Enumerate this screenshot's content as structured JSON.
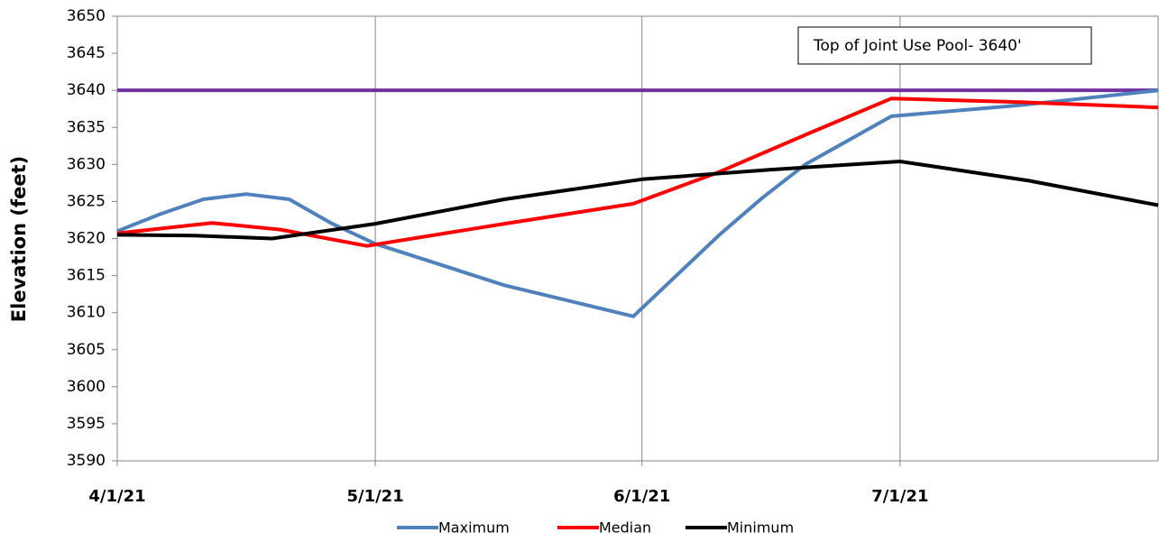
{
  "chart_data": {
    "type": "line",
    "y_label": "Elevation (feet)",
    "xlim": [
      "4/1/21",
      "7/31/21"
    ],
    "xticks": [
      "4/1/21",
      "5/1/21",
      "6/1/21",
      "7/1/21"
    ],
    "ylim": [
      3590,
      3650
    ],
    "yticks": [
      3590,
      3595,
      3600,
      3605,
      3610,
      3615,
      3620,
      3625,
      3630,
      3635,
      3640,
      3645,
      3650
    ],
    "grid": "x",
    "legend": "bottom",
    "reference_lines": [
      {
        "value": 3640,
        "color": "#7030a0"
      }
    ],
    "annotations": [
      "Top of Joint Use Pool- 3640'"
    ],
    "series": [
      {
        "name": "Maximum",
        "color": "#4f81bd",
        "x": [
          "4/1/21",
          "4/6/21",
          "4/11/21",
          "4/16/21",
          "4/21/21",
          "4/26/21",
          "5/1/21",
          "5/16/21",
          "5/31/21",
          "6/5/21",
          "6/10/21",
          "6/15/21",
          "6/20/21",
          "6/30/21",
          "7/15/21",
          "7/31/21"
        ],
        "values": [
          3621,
          3623.3,
          3625.3,
          3626,
          3625.3,
          3622,
          3619.3,
          3613.7,
          3609.5,
          3615,
          3620.5,
          3625.5,
          3630,
          3636.5,
          3638,
          3640
        ]
      },
      {
        "name": "Median",
        "color": "#ff0000",
        "x": [
          "4/1/21",
          "4/12/21",
          "4/20/21",
          "4/30/21",
          "5/16/21",
          "5/31/21",
          "6/10/21",
          "6/20/21",
          "6/30/21",
          "7/15/21",
          "7/31/21"
        ],
        "values": [
          3620.7,
          3622.1,
          3621.2,
          3619,
          3622,
          3624.7,
          3629,
          3634,
          3638.9,
          3638.4,
          3637.7
        ]
      },
      {
        "name": "Minimum",
        "color": "#000000",
        "x": [
          "4/1/21",
          "4/10/21",
          "4/19/21",
          "5/1/21",
          "5/16/21",
          "6/1/21",
          "6/16/21",
          "7/1/21",
          "7/16/21",
          "7/31/21"
        ],
        "values": [
          3620.5,
          3620.4,
          3620,
          3622,
          3625.3,
          3628,
          3629.3,
          3630.4,
          3627.8,
          3624.5
        ]
      }
    ]
  }
}
